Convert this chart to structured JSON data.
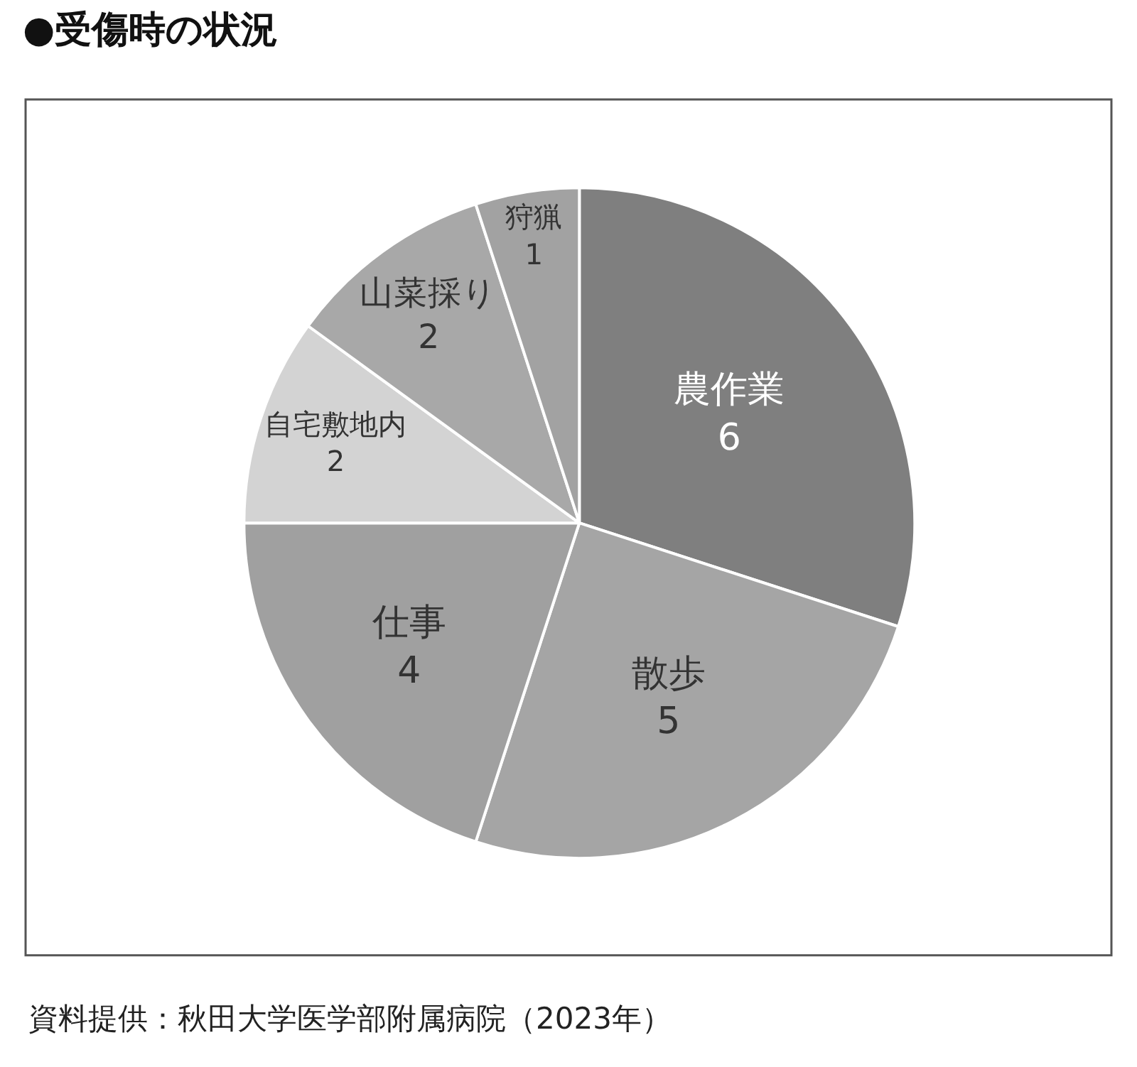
{
  "chart_data": {
    "type": "pie",
    "title": "●受傷時の状況",
    "categories": [
      "農作業",
      "散歩",
      "仕事",
      "自宅敷地内",
      "山菜採り",
      "狩猟"
    ],
    "values": [
      6,
      5,
      4,
      2,
      2,
      1
    ],
    "colors": [
      "#7f7f7f",
      "#a5a5a5",
      "#a0a0a0",
      "#d3d3d3",
      "#a8a8a8",
      "#a2a2a2"
    ],
    "data_labels": true,
    "legend": false,
    "annotations": [
      "資料提供：秋田大学医学部附属病院（2023年）"
    ]
  }
}
